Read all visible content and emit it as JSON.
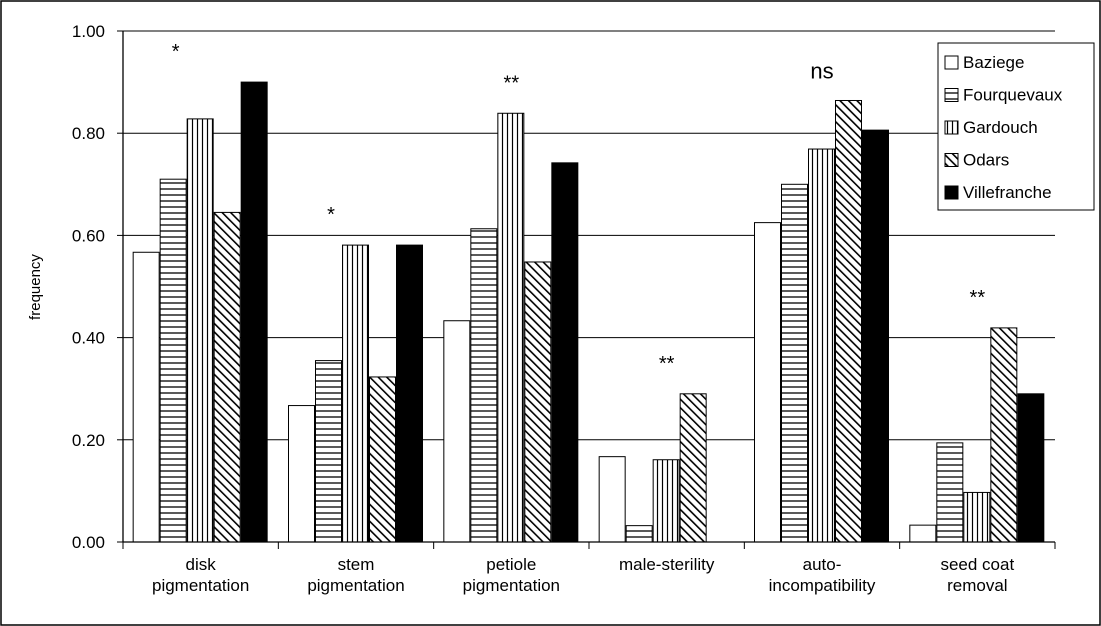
{
  "chart_data": {
    "type": "bar",
    "title": "",
    "xlabel": "",
    "ylabel": "frequency",
    "ylim": [
      0,
      1.0
    ],
    "yticks": [
      "0.00",
      "0.20",
      "0.40",
      "0.60",
      "0.80",
      "1.00"
    ],
    "grid": true,
    "legend_position": "top-right",
    "categories": [
      [
        "disk",
        "pigmentation"
      ],
      [
        "stem",
        "pigmentation"
      ],
      [
        "petiole",
        "pigmentation"
      ],
      [
        "male-sterility"
      ],
      [
        "auto-",
        "incompatibility"
      ],
      [
        "seed coat",
        "removal"
      ]
    ],
    "significance": [
      "*",
      "*",
      "**",
      "**",
      "ns",
      "**"
    ],
    "series": [
      {
        "name": "Baziege",
        "pattern": "empty",
        "values": [
          0.567,
          0.267,
          0.433,
          0.167,
          0.625,
          0.033
        ]
      },
      {
        "name": "Fourquevaux",
        "pattern": "horizontal",
        "values": [
          0.71,
          0.355,
          0.613,
          0.032,
          0.7,
          0.194
        ]
      },
      {
        "name": "Gardouch",
        "pattern": "vertical",
        "values": [
          0.828,
          0.581,
          0.839,
          0.161,
          0.769,
          0.097
        ]
      },
      {
        "name": "Odars",
        "pattern": "diagonal",
        "values": [
          0.645,
          0.323,
          0.548,
          0.29,
          0.864,
          0.419
        ]
      },
      {
        "name": "Villefranche",
        "pattern": "solid",
        "values": [
          0.9,
          0.581,
          0.742,
          0.0,
          0.806,
          0.29
        ]
      }
    ]
  }
}
